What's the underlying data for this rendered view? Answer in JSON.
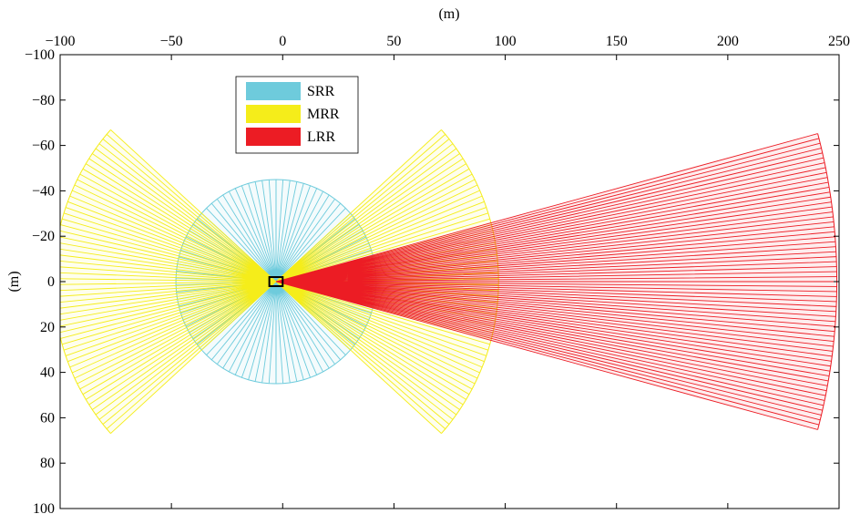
{
  "chart_data": {
    "type": "radar-coverage",
    "xlabel": "(m)",
    "ylabel": "(m)",
    "xlim": [
      -100,
      250
    ],
    "ylim": [
      -100,
      100
    ],
    "y_reversed": true,
    "x_axis_location": "top",
    "xticks": [
      -100,
      -50,
      0,
      50,
      100,
      150,
      200,
      250
    ],
    "yticks": [
      -100,
      -80,
      -60,
      -40,
      -20,
      0,
      20,
      40,
      60,
      80,
      100
    ],
    "grid": false,
    "legend_location": "top-left",
    "vehicle": {
      "x": -3,
      "y": 0,
      "length": 6,
      "width": 4,
      "color": "#000000"
    },
    "series": [
      {
        "name": "SRR",
        "color": "#6ecbdc",
        "sectors": [
          {
            "origin": [
              -3,
              0
            ],
            "range": 45,
            "direction_deg": 0,
            "fov_deg": 180,
            "beams": 45
          },
          {
            "origin": [
              -3,
              0
            ],
            "range": 45,
            "direction_deg": 180,
            "fov_deg": 180,
            "beams": 45
          }
        ]
      },
      {
        "name": "MRR",
        "color": "#f5ed1a",
        "sectors": [
          {
            "origin": [
              -3,
              0
            ],
            "range": 100,
            "direction_deg": 0,
            "fov_deg": 84,
            "beams": 55
          },
          {
            "origin": [
              -3,
              0
            ],
            "range": 100,
            "direction_deg": 180,
            "fov_deg": 84,
            "beams": 55
          }
        ]
      },
      {
        "name": "LRR",
        "color": "#ec1c24",
        "sectors": [
          {
            "origin": [
              -3,
              0
            ],
            "range": 252,
            "direction_deg": 0,
            "fov_deg": 30,
            "beams": 60
          }
        ]
      }
    ]
  }
}
